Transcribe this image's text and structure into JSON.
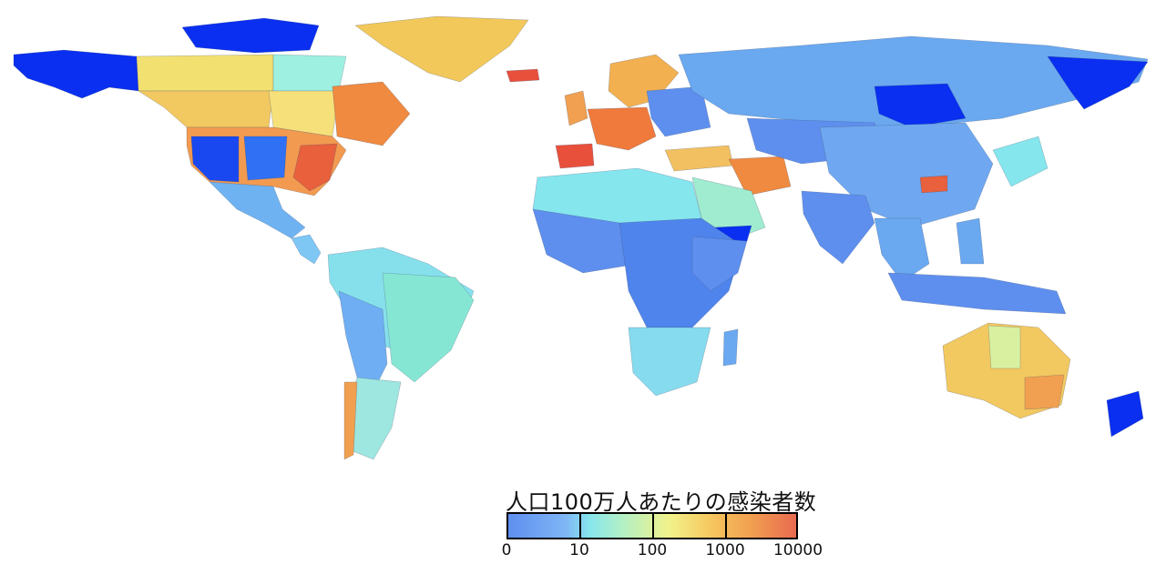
{
  "legend": {
    "title": "人口100万人あたりの感染者数",
    "ticks": [
      "0",
      "10",
      "100",
      "1000",
      "10000"
    ],
    "colors": [
      "#5e8fee",
      "#86e6ee",
      "#f2f28a",
      "#f1a050",
      "#e86a50"
    ]
  },
  "palette": {
    "no_data_blue": "#0a2ff0",
    "low_blue": "#5e8fee",
    "mid_cyan": "#86e6ee",
    "yellow": "#f2d060",
    "orange": "#ef8a40",
    "red": "#e8503c"
  }
}
